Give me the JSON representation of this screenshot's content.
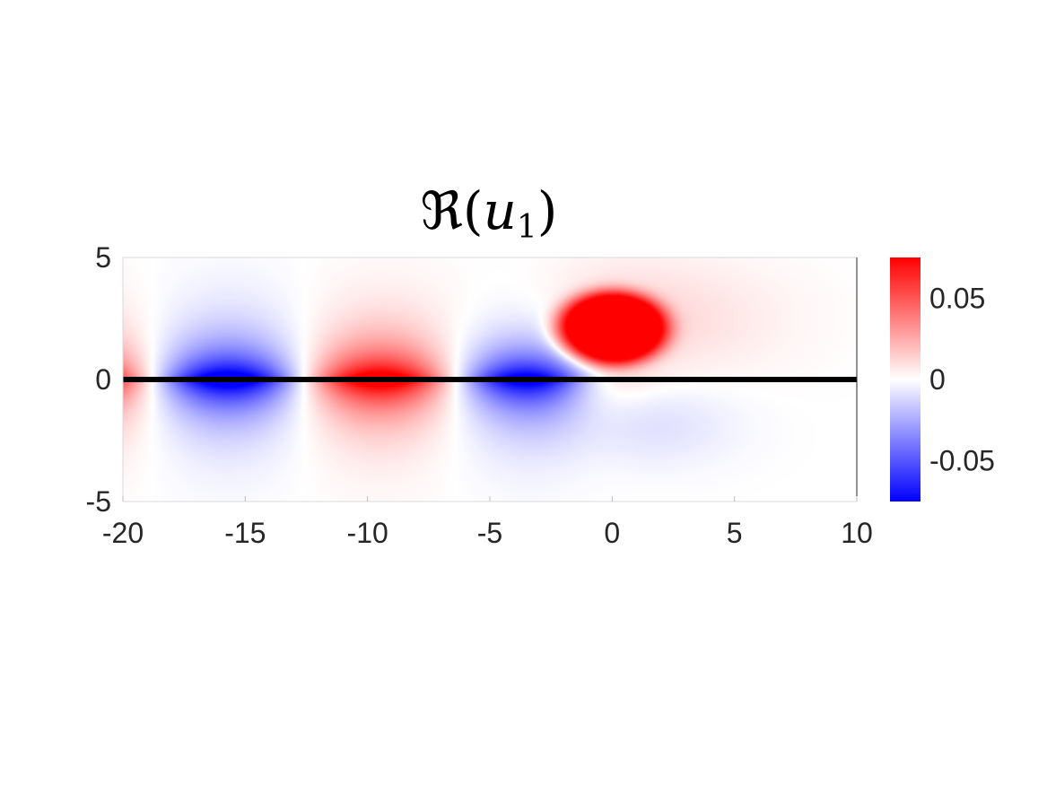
{
  "chart_data": {
    "type": "heatmap",
    "title": {
      "operator": "ℜ",
      "open": "(",
      "var": "u",
      "subscript": "1",
      "close": ")"
    },
    "xlabel": "",
    "ylabel": "",
    "xlim": [
      -20,
      10
    ],
    "ylim": [
      -5,
      5
    ],
    "x_ticks": [
      -20,
      -15,
      -10,
      -5,
      0,
      5,
      10
    ],
    "y_ticks": [
      -5,
      0,
      5
    ],
    "x_tick_labels": [
      "-20",
      "-15",
      "-10",
      "-5",
      "0",
      "5",
      "10"
    ],
    "y_tick_labels": [
      "-5",
      "0",
      "5"
    ],
    "colorbar": {
      "range": [
        -0.075,
        0.075
      ],
      "ticks": [
        -0.05,
        0,
        0.05
      ],
      "tick_labels": [
        "-0.05",
        "0",
        "0.05"
      ],
      "colormap": [
        "#0000ff",
        "#ffffff",
        "#ff0000"
      ]
    },
    "features": [
      {
        "kind": "negative-lobe",
        "x": -15.6,
        "y": 0,
        "peak": -0.07
      },
      {
        "kind": "positive-lobe",
        "x": -9.5,
        "y": 0,
        "peak": 0.06
      },
      {
        "kind": "negative-lobe",
        "x": -3.3,
        "y": 0,
        "peak": -0.07
      },
      {
        "kind": "positive-vortex",
        "x": 0,
        "y": 2.1,
        "peak": 0.075
      }
    ],
    "line": {
      "y": 0,
      "x_range": [
        -20,
        10
      ],
      "color": "#000000"
    },
    "grid": false
  }
}
